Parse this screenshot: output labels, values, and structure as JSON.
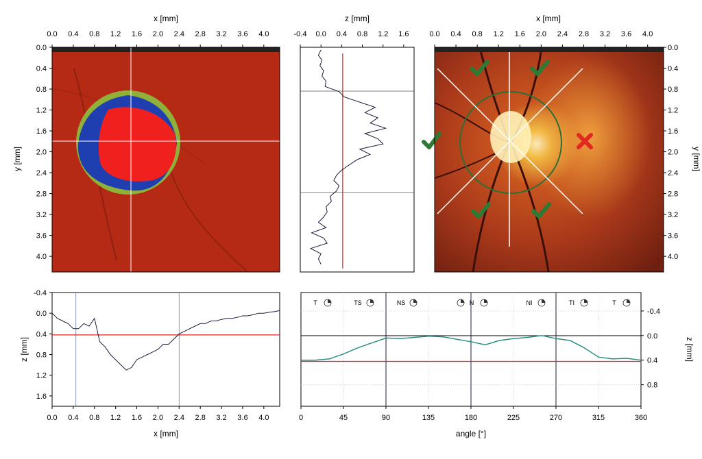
{
  "panels": {
    "disc_map": {
      "xlabel": "x [mm]",
      "ylabel": "y [mm]",
      "xticks": [
        "0.0",
        "0.4",
        "0.8",
        "1.2",
        "1.6",
        "2.0",
        "2.4",
        "2.8",
        "3.2",
        "3.6",
        "4.0"
      ],
      "yticks": [
        "0.0",
        "0.4",
        "0.8",
        "1.2",
        "1.6",
        "2.0",
        "2.4",
        "2.8",
        "3.2",
        "3.6",
        "4.0"
      ],
      "xlim": [
        0.0,
        4.3
      ],
      "ylim": [
        0.0,
        4.3
      ],
      "colors": {
        "background": "#b52a14",
        "rim": "#8fb13a",
        "blue": "#1f3fb0",
        "cup": "#f0201e",
        "crosshair": "#ffffff"
      }
    },
    "vertical_profile": {
      "xlabel": "z [mm]",
      "xticks": [
        "-0.4",
        "0.0",
        "0.4",
        "0.8",
        "1.2",
        "1.6"
      ],
      "xlim": [
        -0.4,
        1.8
      ],
      "ylim": [
        0.0,
        4.3
      ],
      "ref_z": 0.42
    },
    "fundus_photo": {
      "xlabel": "x [mm]",
      "ylabel": "y [mm]",
      "xticks": [
        "0.0",
        "0.4",
        "0.8",
        "1.2",
        "1.6",
        "2.0",
        "2.4",
        "2.8",
        "3.2",
        "3.6",
        "4.0"
      ],
      "yticks": [
        "0.0",
        "0.4",
        "0.8",
        "1.2",
        "1.6",
        "2.0",
        "2.4",
        "2.8",
        "3.2",
        "3.6",
        "4.0"
      ],
      "xlim": [
        0.0,
        4.3
      ],
      "ylim": [
        0.0,
        4.3
      ],
      "colors": {
        "check": "#2e7a35",
        "cross": "#e02a20",
        "lines": "#ffffff"
      }
    },
    "horizontal_profile": {
      "xlabel": "x [mm]",
      "ylabel": "z [mm]",
      "xticks": [
        "0.0",
        "0.4",
        "0.8",
        "1.2",
        "1.6",
        "2.0",
        "2.4",
        "2.8",
        "3.2",
        "3.6",
        "4.0"
      ],
      "yticks": [
        "-0.4",
        "0.0",
        "0.4",
        "0.8",
        "1.2",
        "1.6"
      ],
      "xlim": [
        0.0,
        4.3
      ],
      "ylim": [
        -0.4,
        1.8
      ],
      "ref_z": 0.42,
      "vlines_x": [
        0.45,
        2.4
      ]
    },
    "angular_profile": {
      "xlabel": "angle [°]",
      "ylabel": "z [mm]",
      "xticks": [
        "0",
        "45",
        "90",
        "135",
        "180",
        "225",
        "270",
        "315",
        "360"
      ],
      "yticks": [
        "-0.4",
        "0.0",
        "0.4",
        "0.8"
      ],
      "xlim": [
        0,
        360
      ],
      "ylim": [
        -0.7,
        1.15
      ],
      "ref_z": 0.42,
      "sectors": [
        "T",
        "TS",
        "NS",
        "",
        "N",
        "NI",
        "TI",
        "T"
      ]
    }
  },
  "chart_data": [
    {
      "type": "line",
      "name": "vertical_profile",
      "x_label": "z [mm]",
      "y_label": "y [mm]",
      "points_y": [
        0.05,
        0.15,
        0.25,
        0.35,
        0.45,
        0.55,
        0.65,
        0.75,
        0.85,
        0.95,
        1.05,
        1.15,
        1.25,
        1.35,
        1.45,
        1.55,
        1.65,
        1.75,
        1.85,
        1.95,
        2.05,
        2.15,
        2.25,
        2.35,
        2.45,
        2.55,
        2.65,
        2.75,
        2.85,
        2.95,
        3.05,
        3.15,
        3.25,
        3.35,
        3.45,
        3.55,
        3.65,
        3.75,
        3.85,
        3.95,
        4.05,
        4.15
      ],
      "points_z": [
        0.0,
        -0.05,
        0.02,
        -0.02,
        0.05,
        0.02,
        0.1,
        0.08,
        0.35,
        0.45,
        0.75,
        1.05,
        0.85,
        1.1,
        0.95,
        1.25,
        0.85,
        1.1,
        1.2,
        0.75,
        0.95,
        0.7,
        0.55,
        0.4,
        0.3,
        0.25,
        0.35,
        0.3,
        0.18,
        0.2,
        0.1,
        0.12,
        0.05,
        -0.05,
        0.1,
        -0.18,
        0.05,
        0.12,
        -0.2,
        0.0,
        -0.05,
        0.0
      ]
    },
    {
      "type": "line",
      "name": "horizontal_profile",
      "x": [
        0.0,
        0.1,
        0.2,
        0.3,
        0.4,
        0.5,
        0.6,
        0.7,
        0.8,
        0.9,
        1.0,
        1.1,
        1.2,
        1.3,
        1.4,
        1.5,
        1.6,
        1.7,
        1.8,
        1.9,
        2.0,
        2.1,
        2.2,
        2.3,
        2.4,
        2.5,
        2.6,
        2.7,
        2.8,
        2.9,
        3.0,
        3.1,
        3.2,
        3.3,
        3.4,
        3.5,
        3.6,
        3.7,
        3.8,
        3.9,
        4.0,
        4.1,
        4.2,
        4.3
      ],
      "y": [
        0.0,
        0.1,
        0.15,
        0.2,
        0.3,
        0.3,
        0.2,
        0.25,
        0.1,
        0.55,
        0.65,
        0.8,
        0.9,
        1.0,
        1.1,
        1.05,
        0.9,
        0.85,
        0.8,
        0.75,
        0.7,
        0.6,
        0.6,
        0.5,
        0.4,
        0.35,
        0.3,
        0.25,
        0.2,
        0.2,
        0.15,
        0.15,
        0.12,
        0.1,
        0.1,
        0.08,
        0.05,
        0.05,
        0.03,
        0.0,
        0.0,
        -0.02,
        -0.03,
        -0.05
      ]
    },
    {
      "type": "line",
      "name": "angular_profile",
      "x": [
        0,
        15,
        30,
        45,
        60,
        75,
        90,
        105,
        120,
        135,
        150,
        165,
        180,
        195,
        210,
        225,
        240,
        255,
        270,
        285,
        300,
        315,
        330,
        345,
        360
      ],
      "y": [
        0.4,
        0.4,
        0.38,
        0.3,
        0.2,
        0.12,
        0.04,
        0.05,
        0.03,
        0.01,
        0.02,
        0.06,
        0.1,
        0.15,
        0.08,
        0.05,
        0.03,
        0.0,
        0.05,
        0.08,
        0.2,
        0.35,
        0.38,
        0.37,
        0.4
      ]
    }
  ]
}
